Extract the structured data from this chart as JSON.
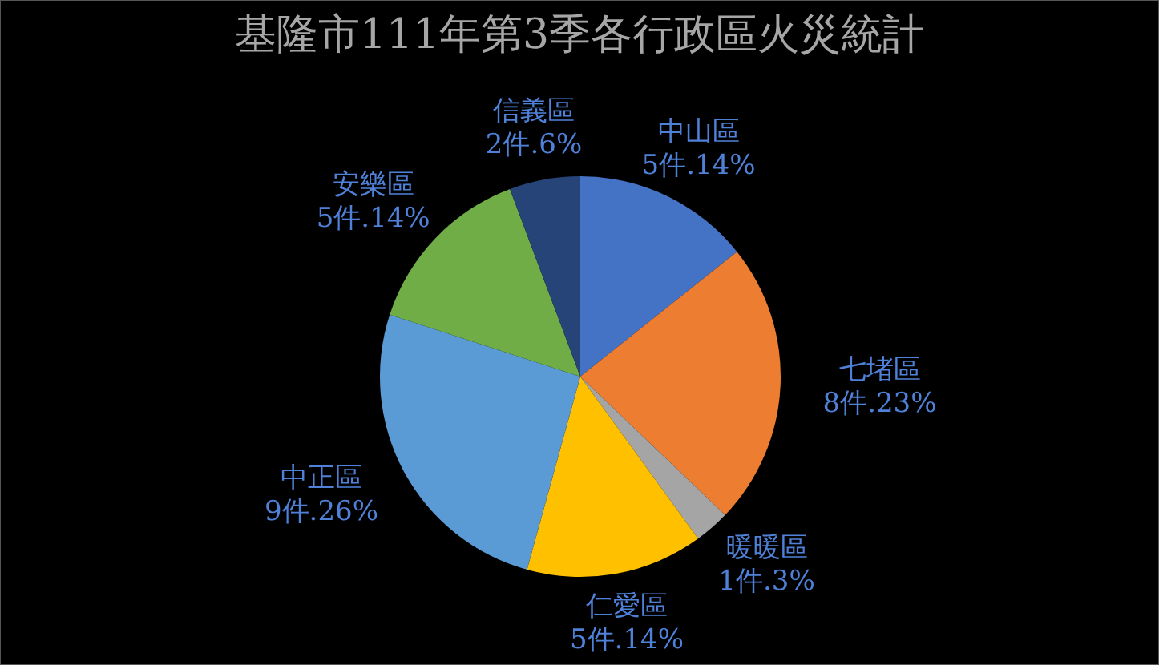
{
  "chart_data": {
    "type": "pie",
    "title": "基隆市111年第3季各行政區火災統計",
    "categories": [
      "中山區",
      "七堵區",
      "暖暖區",
      "仁愛區",
      "中正區",
      "安樂區",
      "信義區"
    ],
    "values": [
      5,
      8,
      1,
      5,
      9,
      5,
      2
    ],
    "value_labels": [
      "5件.14%",
      "8件.23%",
      "1件.3%",
      "5件.14%",
      "9件.26%",
      "5件.14%",
      "2件.6%"
    ],
    "colors": [
      "#4472c4",
      "#ed7d31",
      "#a5a5a5",
      "#ffc000",
      "#5b9bd5",
      "#70ad47",
      "#264478"
    ]
  }
}
